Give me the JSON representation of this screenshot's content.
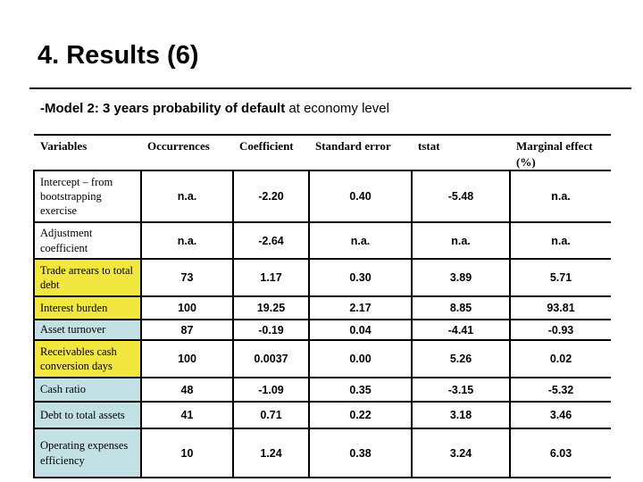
{
  "slide": {
    "title": "4. Results (6)",
    "subtitle_bold": "-Model 2: 3 years probability of default",
    "subtitle_regular": " at economy level"
  },
  "table": {
    "columns": [
      "Variables",
      "Occurrences",
      "Coefficient",
      "Standard error",
      "tstat",
      "Marginal effect (%)"
    ],
    "rows": [
      {
        "variable": "Intercept – from bootstrapping exercise",
        "highlight": "none",
        "values": [
          "n.a.",
          "-2.20",
          "0.40",
          "-5.48",
          "n.a."
        ]
      },
      {
        "variable": "Adjustment coefficient",
        "highlight": "none",
        "values": [
          "n.a.",
          "-2.64",
          "n.a.",
          "n.a.",
          "n.a."
        ]
      },
      {
        "variable": "Trade arrears to total debt",
        "highlight": "yellow",
        "values": [
          "73",
          "1.17",
          "0.30",
          "3.89",
          "5.71"
        ]
      },
      {
        "variable": "Interest burden",
        "highlight": "yellow",
        "values": [
          "100",
          "19.25",
          "2.17",
          "8.85",
          "93.81"
        ]
      },
      {
        "variable": "Asset turnover",
        "highlight": "blue",
        "values": [
          "87",
          "-0.19",
          "0.04",
          "-4.41",
          "-0.93"
        ]
      },
      {
        "variable": "Receivables cash conversion days",
        "highlight": "yellow",
        "values": [
          "100",
          "0.0037",
          "0.00",
          "5.26",
          "0.02"
        ]
      },
      {
        "variable": "Cash ratio",
        "highlight": "blue",
        "values": [
          "48",
          "-1.09",
          "0.35",
          "-3.15",
          "-5.32"
        ]
      },
      {
        "variable": "Debt to total assets",
        "highlight": "blue",
        "values": [
          "41",
          "0.71",
          "0.22",
          "3.18",
          "3.46"
        ]
      },
      {
        "variable": "Operating expenses efficiency",
        "highlight": "blue",
        "values": [
          "10",
          "1.24",
          "0.38",
          "3.24",
          "6.03"
        ]
      }
    ],
    "colors": {
      "yellow": "#F2E73E",
      "blue": "#C3E1E4"
    }
  }
}
